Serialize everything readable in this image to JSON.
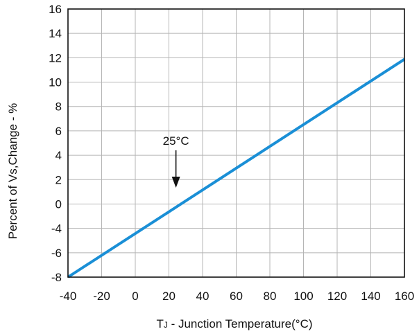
{
  "chart_data": {
    "type": "line",
    "title": "",
    "xlabel": {
      "main": "T",
      "sub": "J",
      "rest": " - Junction Temperature(°C)"
    },
    "ylabel": "Percent of Vs,Change - %",
    "xlim": [
      -40,
      160
    ],
    "ylim": [
      -8,
      16
    ],
    "x_ticks": [
      -40,
      -20,
      0,
      20,
      40,
      60,
      80,
      100,
      120,
      140,
      160
    ],
    "y_tick_labels": [
      "16",
      "14",
      "12",
      "10",
      "8",
      "6",
      "4",
      "2",
      "0",
      "-4",
      "-6",
      "-8"
    ],
    "grid": true,
    "series": [
      {
        "color": "#1a8fd6",
        "x": [
          -40,
          160
        ],
        "y": [
          -8,
          11.5
        ]
      }
    ],
    "annotation": {
      "text": "25°C",
      "x": 25,
      "y": 0.5,
      "arrow": "down"
    }
  }
}
